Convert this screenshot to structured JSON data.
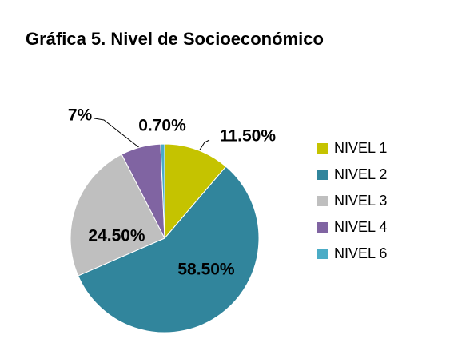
{
  "chart_data": {
    "type": "pie",
    "title": "Gráfica 5. Nivel  de Socioeconómico",
    "categories": [
      "NIVEL 1",
      "NIVEL 2",
      "NIVEL 3",
      "NIVEL 4",
      "NIVEL 6"
    ],
    "values": [
      11.5,
      58.5,
      24.5,
      7,
      0.7
    ],
    "value_labels": [
      "11.50%",
      "58.50%",
      "24.50%",
      "7%",
      "0.70%"
    ],
    "colors": [
      "#c5c300",
      "#31859c",
      "#bfbfbf",
      "#8064a2",
      "#4bacc6"
    ],
    "legend": "right"
  }
}
